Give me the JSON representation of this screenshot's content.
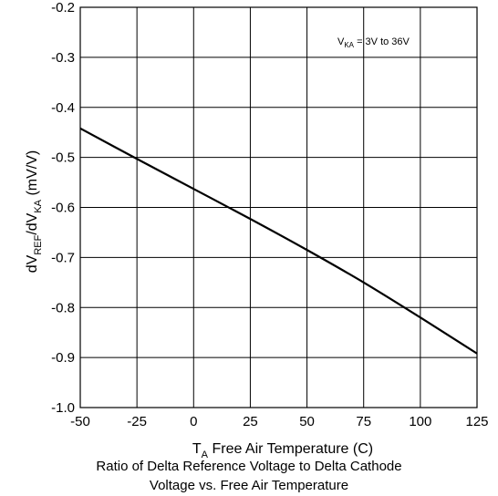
{
  "chart_data": {
    "type": "line",
    "xlim": [
      -50,
      125
    ],
    "ylim": [
      -1.0,
      -0.2
    ],
    "x_ticks": [
      "-50",
      "-25",
      "0",
      "25",
      "50",
      "75",
      "100",
      "125"
    ],
    "y_ticks": [
      "-0.2",
      "-0.3",
      "-0.4",
      "-0.5",
      "-0.6",
      "-0.7",
      "-0.8",
      "-0.9",
      "-1.0"
    ],
    "grid": true,
    "xlabel": {
      "main": "T",
      "sub": "A",
      "rest": " Free Air Temperature (C)"
    },
    "ylabel": {
      "p1": "dV",
      "s1": "REF",
      "p2": "/dV",
      "s2": "KA",
      "p3": " (mV/V)"
    },
    "annotation": {
      "main": "V",
      "sub": "KA",
      "rest": " = 3V to 36V"
    },
    "series": [
      {
        "x": [
          -50,
          -25,
          0,
          25,
          50,
          75,
          100,
          125
        ],
        "values": [
          -0.442,
          -0.503,
          -0.563,
          -0.623,
          -0.685,
          -0.75,
          -0.82,
          -0.892
        ]
      }
    ]
  },
  "caption": {
    "line1": "Ratio of Delta Reference Voltage to Delta Cathode",
    "line2": "Voltage vs. Free Air Temperature"
  }
}
